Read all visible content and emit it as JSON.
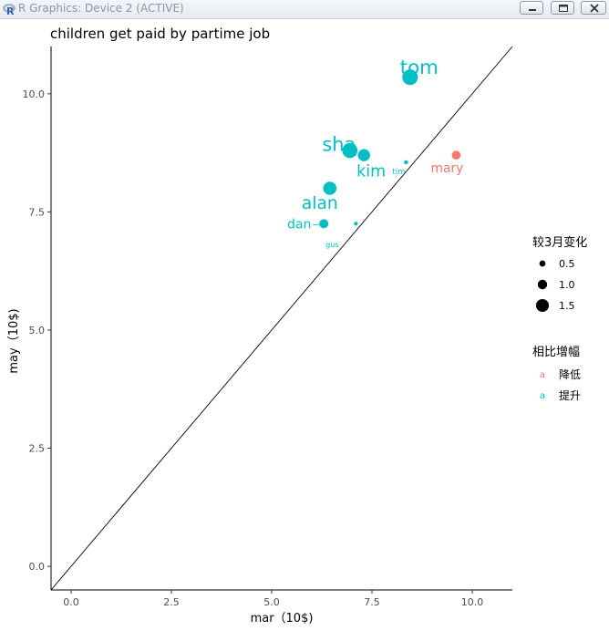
{
  "window": {
    "title": "R Graphics: Device 2 (ACTIVE)",
    "icons": [
      "r-logo-icon",
      "minimize-icon",
      "maximize-icon",
      "close-icon"
    ]
  },
  "chart_data": {
    "type": "scatter",
    "title": "children get paid by partime job",
    "xlabel": "mar（10$)",
    "ylabel": "may（10$)",
    "xlim": [
      -0.5,
      11.0
    ],
    "ylim": [
      -0.5,
      11.0
    ],
    "xticks": [
      0.0,
      2.5,
      5.0,
      7.5,
      10.0
    ],
    "xtick_labels": [
      "0.0",
      "2.5",
      "5.0",
      "7.5",
      "10.0"
    ],
    "yticks": [
      0.0,
      2.5,
      5.0,
      7.5,
      10.0
    ],
    "ytick_labels": [
      "0.0",
      "2.5",
      "5.0",
      "7.5",
      "10.0"
    ],
    "grid": false,
    "reference_line": {
      "type": "identity",
      "slope": 1,
      "intercept": 0
    },
    "points": [
      {
        "label": "tom",
        "x": 8.45,
        "y": 10.35,
        "change": 1.9,
        "group": "提升"
      },
      {
        "label": "sha",
        "x": 6.95,
        "y": 8.8,
        "change": 1.85,
        "group": "提升"
      },
      {
        "label": "kim",
        "x": 7.3,
        "y": 8.7,
        "change": 1.4,
        "group": "提升"
      },
      {
        "label": "tim",
        "x": 8.35,
        "y": 8.55,
        "change": 0.2,
        "group": "提升"
      },
      {
        "label": "mary",
        "x": 9.6,
        "y": 8.7,
        "change": -0.9,
        "group": "降低"
      },
      {
        "label": "alan",
        "x": 6.45,
        "y": 8.0,
        "change": 1.55,
        "group": "提升"
      },
      {
        "label": "dan",
        "x": 6.3,
        "y": 7.25,
        "change": 0.95,
        "group": "提升"
      },
      {
        "label": "gus",
        "x": 7.1,
        "y": 7.25,
        "change": 0.15,
        "group": "提升"
      }
    ],
    "size_legend": {
      "title": "较3月变化",
      "entries": [
        "0.5",
        "1.0",
        "1.5"
      ],
      "values": [
        0.5,
        1.0,
        1.5
      ]
    },
    "color_legend": {
      "title": "相比增幅",
      "entries": [
        {
          "name": "降低",
          "color": "#F8766D"
        },
        {
          "name": "提升",
          "color": "#00BFC4"
        }
      ]
    },
    "legend_position": "right"
  }
}
